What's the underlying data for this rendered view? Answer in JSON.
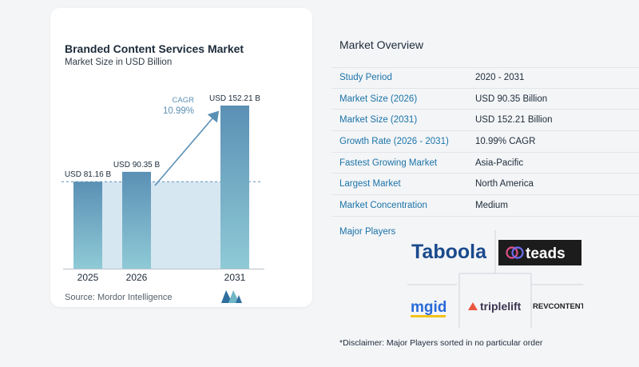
{
  "chart_panel": {
    "title": "Branded Content Services Market",
    "subtitle": "Market Size in USD Billion",
    "source": "Source:  Mordor Intelligence",
    "cagr_label": "CAGR",
    "cagr_value": "10.99%"
  },
  "chart_data": {
    "type": "bar",
    "title": "Branded Content Services Market",
    "subtitle": "Market Size in USD Billion",
    "categories": [
      "2025",
      "2026",
      "2031"
    ],
    "values": [
      81.16,
      90.35,
      152.21
    ],
    "data_labels": [
      "USD 81.16 B",
      "USD 90.35 B",
      "USD 152.21 B"
    ],
    "ylim": [
      0,
      152.21
    ],
    "grid": false,
    "annotation": {
      "text": "CAGR 10.99%",
      "from": "2026",
      "to": "2031"
    },
    "colors": {
      "bar_top": "#5b90b5",
      "bar_bottom": "#8fcad6",
      "area": "#d6e7f1",
      "arrow": "#5b90b5"
    }
  },
  "overview": {
    "title": "Market Overview",
    "rows": [
      {
        "label": "Study Period",
        "value": "2020 - 2031"
      },
      {
        "label": "Market Size (2026)",
        "value": "USD 90.35 Billion"
      },
      {
        "label": "Market Size (2031)",
        "value": "USD 152.21 Billion"
      },
      {
        "label": "Growth Rate (2026 - 2031)",
        "value": "10.99% CAGR"
      },
      {
        "label": "Fastest Growing Market",
        "value": "Asia-Pacific"
      },
      {
        "label": "Largest Market",
        "value": "North America"
      },
      {
        "label": "Market Concentration",
        "value": "Medium"
      }
    ],
    "players_title": "Major Players",
    "players": [
      "Taboola",
      "teads",
      "mgid",
      "triplelift",
      "REVCONTENT"
    ],
    "disclaimer": "*Disclaimer: Major Players sorted in no particular order"
  }
}
